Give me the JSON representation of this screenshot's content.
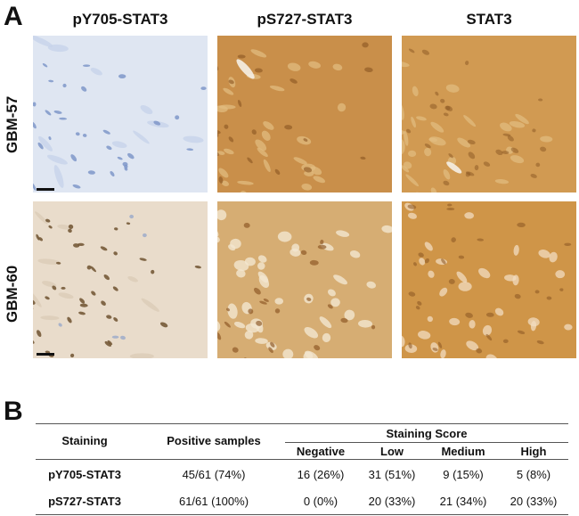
{
  "panels": {
    "a": "A",
    "b": "B"
  },
  "columns": [
    "pY705-STAT3",
    "pS727-STAT3",
    "STAT3"
  ],
  "rows": [
    "GBM-57",
    "GBM-60"
  ],
  "table": {
    "col_staining": "Staining",
    "col_positive": "Positive samples",
    "score_group": "Staining Score",
    "score_cols": [
      "Negative",
      "Low",
      "Medium",
      "High"
    ],
    "rows": [
      {
        "staining": "pY705-STAT3",
        "positive": "45/61 (74%)",
        "scores": [
          "16 (26%)",
          "31 (51%)",
          "9 (15%)",
          "5 (8%)"
        ]
      },
      {
        "staining": "pS727-STAT3",
        "positive": "61/61 (100%)",
        "scores": [
          "0 (0%)",
          "20 (33%)",
          "21 (34%)",
          "20 (33%)"
        ]
      }
    ]
  },
  "colors": {
    "hematoxylin_bg": "#dfe6f2",
    "hematoxylin_nuclei": "#7f97c9",
    "light_brown_bg": "#e9dccb",
    "brown_nuclei": "#6e5230",
    "dab_bg": "#c98f4a",
    "dab_dark": "#8a5522",
    "dab_light": "#e2bd82"
  }
}
